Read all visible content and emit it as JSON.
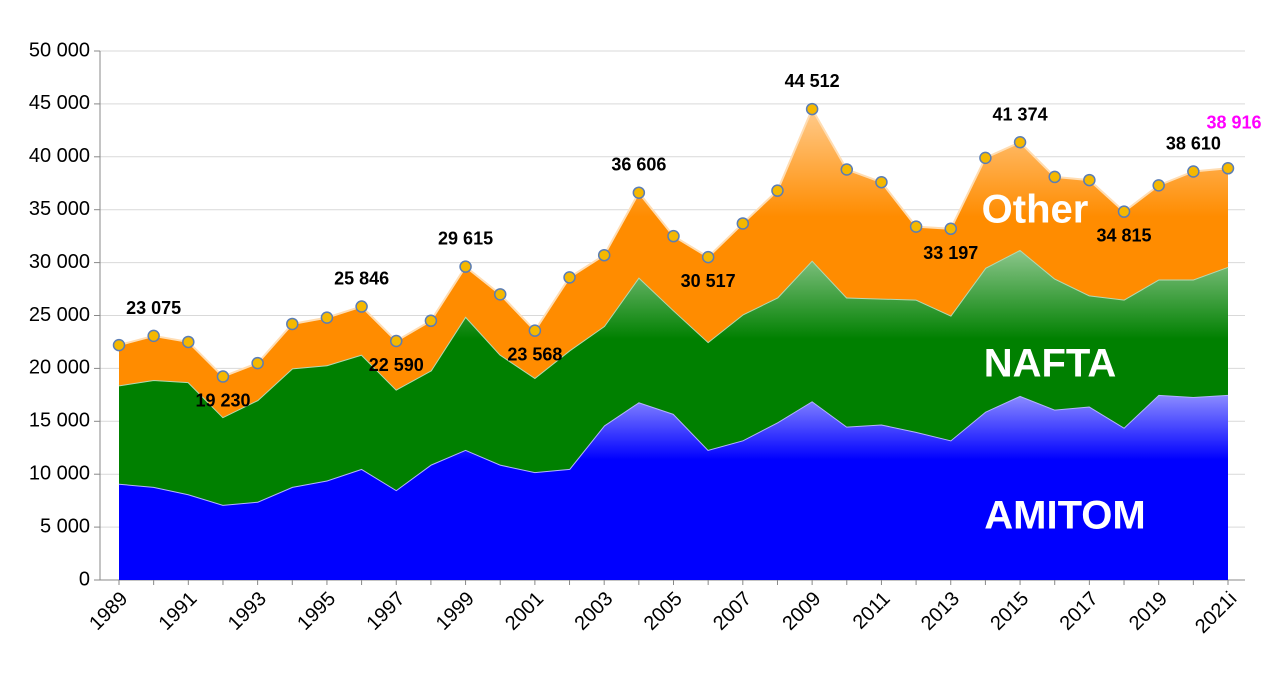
{
  "chart_data": {
    "type": "stacked_area",
    "categories": [
      "1989",
      null,
      "1991",
      null,
      "1993",
      null,
      "1995",
      null,
      "1997",
      null,
      "1999",
      null,
      "2001",
      null,
      "2003",
      null,
      "2005",
      null,
      "2007",
      null,
      "2009",
      null,
      "2011",
      null,
      "2013",
      null,
      "2015",
      null,
      "2017",
      null,
      "2019",
      null,
      "2021i"
    ],
    "series": [
      {
        "name": "AMITOM",
        "color": "#0000ff",
        "values": [
          9100,
          8800,
          8100,
          7100,
          7400,
          8800,
          9400,
          10500,
          8500,
          10900,
          12300,
          10900,
          10200,
          10500,
          14600,
          16800,
          15700,
          12300,
          13200,
          14900,
          16900,
          14500,
          14700,
          14000,
          13200,
          15900,
          17400,
          16100,
          16400,
          14400,
          17500,
          17300,
          17500
        ]
      },
      {
        "name": "NAFTA",
        "color": "#008000",
        "values": [
          9300,
          10100,
          10600,
          8300,
          9600,
          11200,
          10900,
          10800,
          9500,
          8900,
          12600,
          10400,
          8900,
          11200,
          9400,
          11800,
          9800,
          10200,
          11900,
          11800,
          13300,
          12200,
          11900,
          12500,
          11800,
          13600,
          13800,
          12400,
          10500,
          12100,
          10900,
          11100,
          12100
        ]
      },
      {
        "name": "Other",
        "color": "#ff8c00",
        "values": [
          3800,
          4175,
          3800,
          3830,
          3500,
          4200,
          4500,
          4546,
          4590,
          4700,
          4715,
          5700,
          4468,
          6900,
          6700,
          8006,
          7000,
          8017,
          8600,
          10100,
          14312,
          12100,
          11000,
          6900,
          8197,
          10400,
          10174,
          9600,
          10900,
          8315,
          8900,
          10210,
          9316
        ]
      }
    ],
    "totals": {
      "values": [
        22200,
        23075,
        22500,
        19230,
        20500,
        24200,
        24800,
        25846,
        22590,
        24500,
        29615,
        27000,
        23568,
        28600,
        30700,
        36606,
        32500,
        30517,
        33700,
        36800,
        44512,
        38800,
        37600,
        33400,
        33197,
        39900,
        41374,
        38100,
        37800,
        34815,
        37300,
        38610,
        38916
      ],
      "value_labels": [
        null,
        "23 075",
        null,
        "19 230",
        null,
        null,
        null,
        "25 846",
        "22 590",
        null,
        "29 615",
        null,
        "23 568",
        null,
        null,
        "36 606",
        null,
        "30 517",
        null,
        null,
        "44 512",
        null,
        null,
        null,
        "33 197",
        null,
        "41 374",
        null,
        null,
        "34 815",
        null,
        "38 610",
        "38 916"
      ],
      "label_color": "#000000",
      "last_label_color": "#ff00ff",
      "marker_color": "#f5b800"
    },
    "ylim": [
      0,
      50000
    ],
    "yticks": [
      0,
      {
        "value": 5000,
        "label": "5 000"
      },
      {
        "value": 10000,
        "label": "10 000"
      },
      {
        "value": 15000,
        "label": "15 000"
      },
      {
        "value": 20000,
        "label": "20 000"
      },
      {
        "value": 25000,
        "label": "25 000"
      },
      {
        "value": 30000,
        "label": "30 000"
      },
      {
        "value": 35000,
        "label": "35 000"
      },
      {
        "value": 40000,
        "label": "40 000"
      },
      {
        "value": 45000,
        "label": "45 000"
      },
      {
        "value": 50000,
        "label": "50 000"
      }
    ],
    "grid": true
  }
}
